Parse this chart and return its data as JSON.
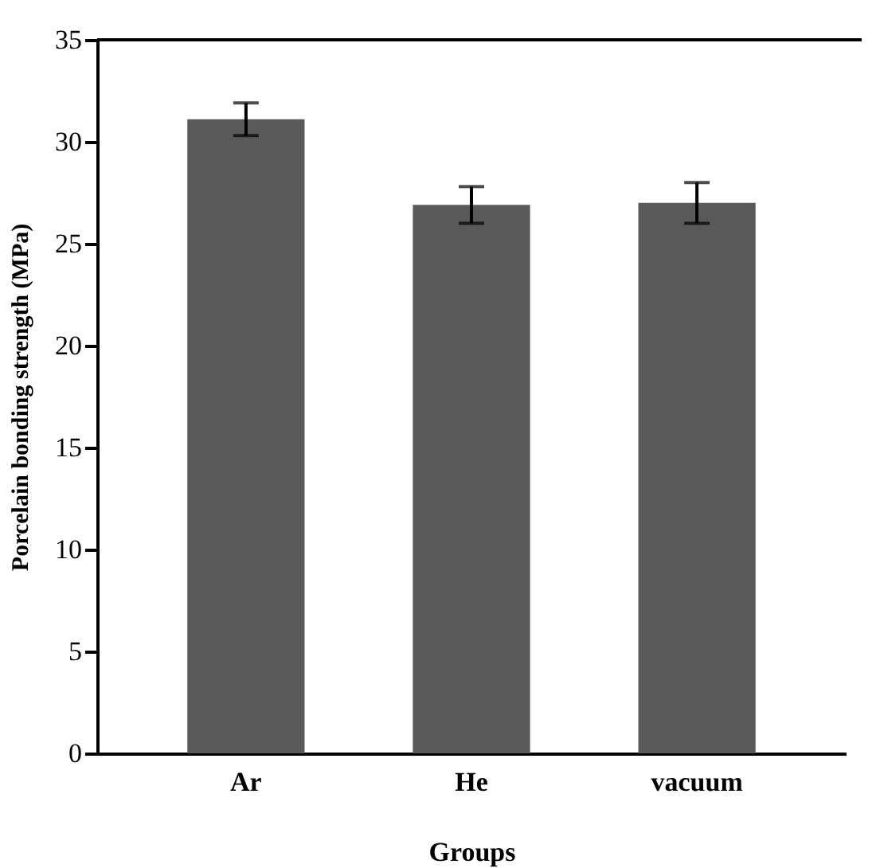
{
  "chart_data": {
    "type": "bar",
    "xlabel": "Groups",
    "ylabel": "Porcelain bonding strength (MPa)",
    "categories": [
      "Ar",
      "He",
      "vacuum"
    ],
    "values": [
      31.1,
      26.9,
      27.0
    ],
    "errors": [
      0.8,
      0.9,
      1.0
    ],
    "color": "#5a5a5a",
    "ylim": [
      0,
      35
    ],
    "yticks": [
      0,
      5,
      10,
      15,
      20,
      25,
      30,
      35
    ],
    "grid": false
  }
}
